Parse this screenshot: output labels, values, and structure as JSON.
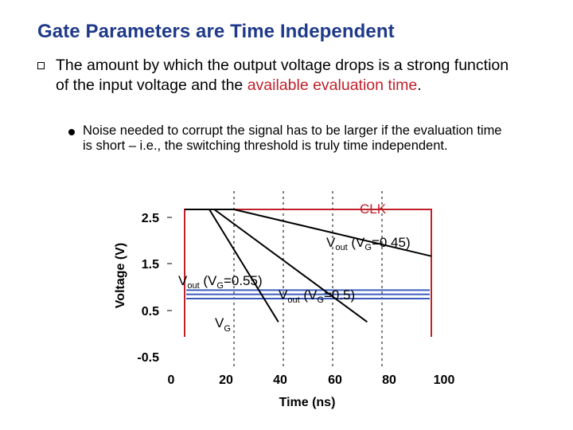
{
  "slide": {
    "title": "Gate Parameters are Time Independent",
    "bullet1": {
      "pre": "The amount by which the output voltage drops is a strong function of the input voltage and the ",
      "highlight": "available evaluation time",
      "post": "."
    },
    "bullet2": {
      "text": "Noise needed to corrupt the signal has to be larger if the evaluation time is short – i.e., the switching threshold is truly time independent."
    }
  },
  "colors": {
    "title": "#1f3a8a",
    "highlight": "#c0202a",
    "clk": "#c0202a",
    "vg": "#3a5bbf",
    "vout": "#000000"
  },
  "chart_data": {
    "type": "line",
    "xlabel": "Time (ns)",
    "ylabel": "Voltage (V)",
    "xlim": [
      0,
      100
    ],
    "ylim": [
      -0.5,
      2.5
    ],
    "x_ticks": [
      "0",
      "20",
      "40",
      "60",
      "80",
      "100"
    ],
    "y_ticks": [
      "2.5",
      "1.5",
      "0.5",
      "-0.5"
    ],
    "series": [
      {
        "name": "CLK",
        "points": [
          [
            0,
            -0.5
          ],
          [
            0,
            2.5
          ],
          [
            100,
            2.5
          ],
          [
            100,
            -0.5
          ]
        ]
      },
      {
        "name": "Vout (VG=0.45)",
        "points": [
          [
            0,
            2.5
          ],
          [
            20,
            2.5
          ],
          [
            100,
            1.4
          ]
        ]
      },
      {
        "name": "Vout (VG=0.5)",
        "points": [
          [
            0,
            2.5
          ],
          [
            12,
            2.5
          ],
          [
            74,
            -0.15
          ]
        ]
      },
      {
        "name": "Vout (VG=0.55)",
        "points": [
          [
            0,
            2.5
          ],
          [
            10,
            2.5
          ],
          [
            38,
            -0.15
          ]
        ]
      },
      {
        "name": "VG",
        "values": [
          0.6,
          0.5,
          0.4
        ]
      }
    ],
    "annotations": {
      "clk": "CLK",
      "vout045": {
        "main": "V",
        "sub": "out",
        "mid": " (V",
        "sub2": "G",
        "tail": "=0.45)"
      },
      "vout055": {
        "main": "V",
        "sub": "out",
        "mid": " (V",
        "sub2": "G",
        "tail": "=0.55)"
      },
      "vout05": {
        "main": "V",
        "sub": "out",
        "mid": " (V",
        "sub2": "G",
        "tail": "=0.5)"
      },
      "vg": {
        "main": "V",
        "sub": "G"
      }
    }
  }
}
